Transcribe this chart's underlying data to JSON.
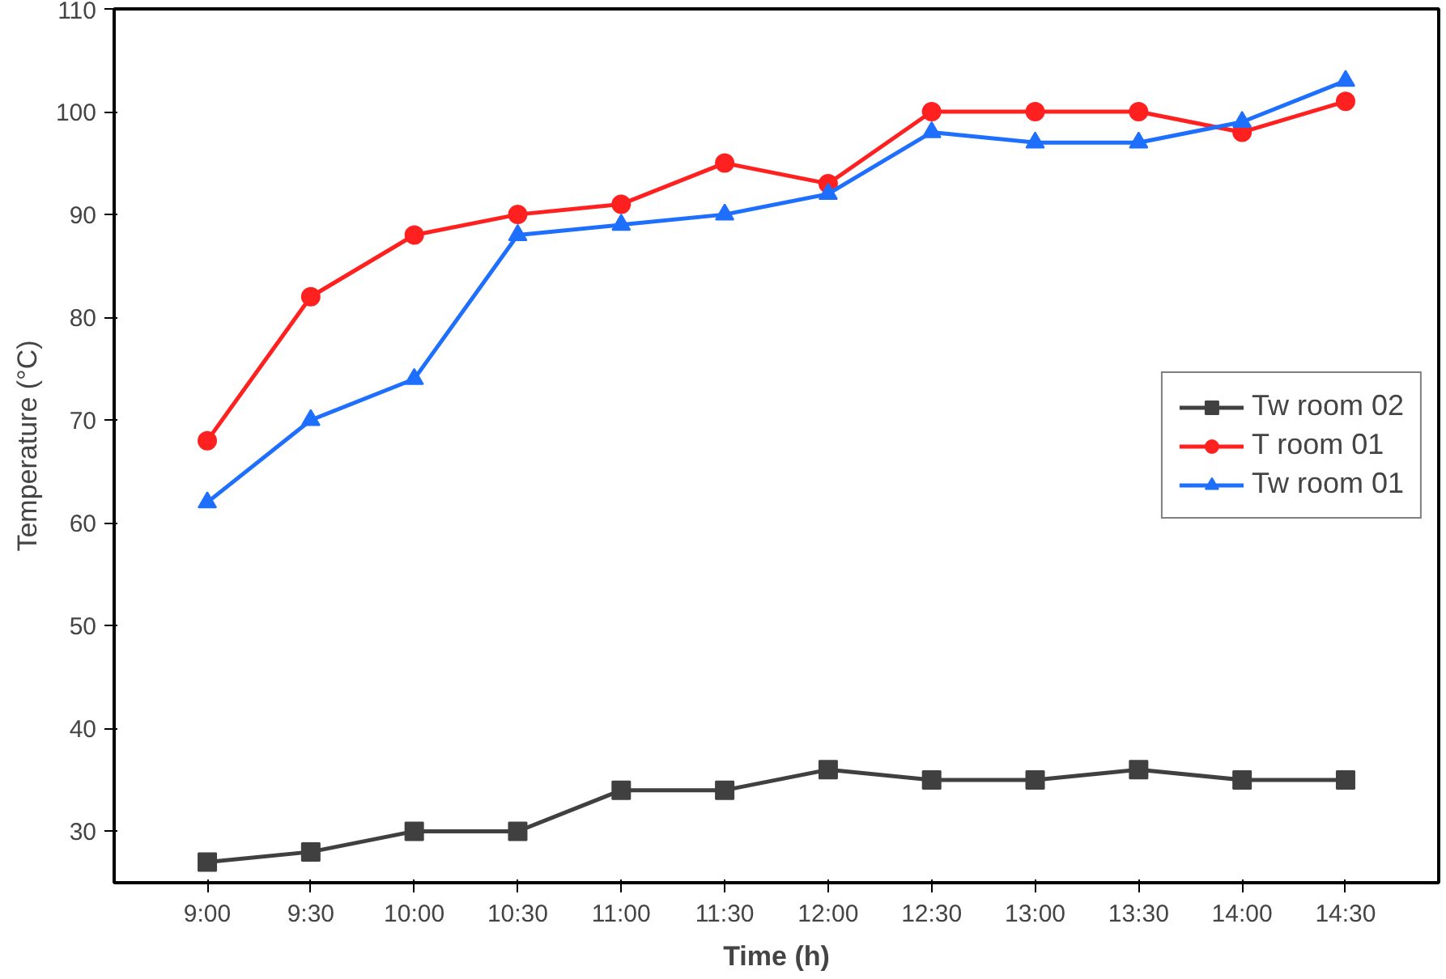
{
  "chart_data": {
    "type": "line",
    "xlabel": "Time (h)",
    "ylabel": "Temperature (°C)",
    "categories": [
      "9:00",
      "9:30",
      "10:00",
      "10:30",
      "11:00",
      "11:30",
      "12:00",
      "12:30",
      "13:00",
      "13:30",
      "14:00",
      "14:30"
    ],
    "series": [
      {
        "name": "Tw room 02",
        "color": "#404040",
        "marker": "square",
        "values": [
          27,
          28,
          30,
          30,
          34,
          34,
          36,
          35,
          35,
          36,
          35,
          35
        ]
      },
      {
        "name": "T room 01",
        "color": "#ff2020",
        "marker": "circle",
        "values": [
          68,
          82,
          88,
          90,
          91,
          95,
          93,
          100,
          100,
          100,
          98,
          101
        ]
      },
      {
        "name": "Tw room 01",
        "color": "#1f6fff",
        "marker": "triangle",
        "values": [
          62,
          70,
          74,
          88,
          89,
          90,
          92,
          98,
          97,
          97,
          99,
          103
        ]
      }
    ],
    "ylim": [
      25,
      110
    ],
    "yticks": [
      30,
      40,
      50,
      60,
      70,
      80,
      90,
      100,
      110
    ],
    "grid": false,
    "legend": "right",
    "line_style": "solid"
  }
}
